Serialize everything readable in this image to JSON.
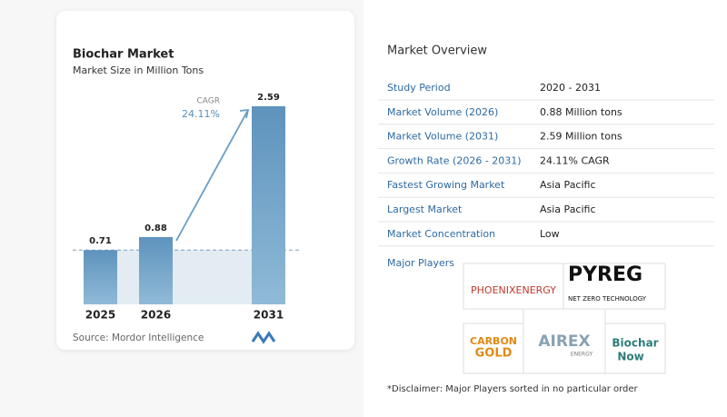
{
  "chart_data": {
    "type": "bar",
    "title": "Biochar Market",
    "subtitle": "Market Size in Million Tons",
    "categories": [
      "2025",
      "2026",
      "2031"
    ],
    "values": [
      0.71,
      0.88,
      2.59
    ],
    "color": "#6a9ec4",
    "annotation_label": "CAGR",
    "annotation_value": "24.11%",
    "source": "Source: Mordor Intelligence"
  },
  "overview": {
    "title": "Market Overview",
    "rows": [
      [
        "Study Period",
        "2020 - 2031"
      ],
      [
        "Market Volume (2026)",
        "0.88 Million tons"
      ],
      [
        "Market Volume (2031)",
        "2.59 Million tons"
      ],
      [
        "Growth Rate (2026 - 2031)",
        "24.11% CAGR"
      ],
      [
        "Fastest Growing Market",
        "Asia Pacific"
      ],
      [
        "Largest Market",
        "Asia Pacific"
      ],
      [
        "Market Concentration",
        "Low"
      ]
    ],
    "players_title": "Major Players",
    "players": [
      "PHOENIXENERGY",
      "PYREG",
      "NET ZERO TECHNOLOGY",
      "CARBON",
      "GOLD",
      "AIREX",
      "ENERGY",
      "Biochar",
      "Now"
    ],
    "disclaimer": "*Disclaimer: Major Players sorted in no particular order"
  }
}
